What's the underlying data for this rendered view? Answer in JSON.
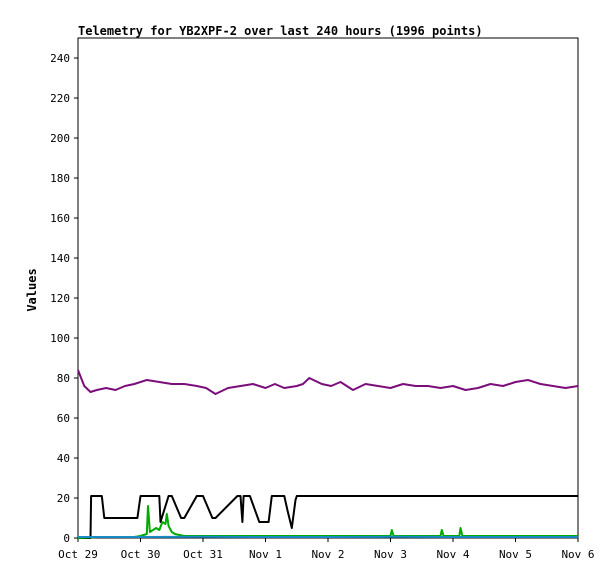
{
  "chart_data": {
    "type": "line",
    "title": "Telemetry for YB2XPF-2 over last 240 hours (1996 points)",
    "xlabel": "",
    "ylabel": "Values",
    "ylim": [
      0,
      250
    ],
    "yticks": [
      0,
      20,
      40,
      60,
      80,
      100,
      120,
      140,
      160,
      180,
      200,
      220,
      240
    ],
    "xlim": [
      0,
      8
    ],
    "xticks": [
      {
        "x": 0,
        "label": "Oct 29"
      },
      {
        "x": 1,
        "label": "Oct 30"
      },
      {
        "x": 2,
        "label": "Oct 31"
      },
      {
        "x": 3,
        "label": "Nov 1"
      },
      {
        "x": 4,
        "label": "Nov 2"
      },
      {
        "x": 5,
        "label": "Nov 3"
      },
      {
        "x": 6,
        "label": "Nov 4"
      },
      {
        "x": 7,
        "label": "Nov 5"
      },
      {
        "x": 8,
        "label": "Nov 6"
      }
    ],
    "grid": false,
    "legend": "none",
    "series": [
      {
        "color": "#7b0e7b",
        "x": [
          0,
          0.05,
          0.1,
          0.2,
          0.3,
          0.45,
          0.6,
          0.75,
          0.9,
          1.1,
          1.3,
          1.5,
          1.7,
          1.9,
          2.05,
          2.2,
          2.4,
          2.6,
          2.8,
          3.0,
          3.15,
          3.3,
          3.5,
          3.6,
          3.7,
          3.9,
          4.05,
          4.2,
          4.4,
          4.6,
          4.8,
          5.0,
          5.2,
          5.4,
          5.6,
          5.8,
          6.0,
          6.2,
          6.4,
          6.6,
          6.8,
          7.0,
          7.2,
          7.4,
          7.6,
          7.8,
          8.0
        ],
        "values": [
          84,
          80,
          76,
          73,
          74,
          75,
          74,
          76,
          77,
          79,
          78,
          77,
          77,
          76,
          75,
          72,
          75,
          76,
          77,
          75,
          77,
          75,
          76,
          77,
          80,
          77,
          76,
          78,
          74,
          77,
          76,
          75,
          77,
          76,
          76,
          75,
          76,
          74,
          75,
          77,
          76,
          78,
          79,
          77,
          76,
          75,
          76
        ]
      },
      {
        "color": "#000000",
        "x": [
          0,
          0.2,
          0.21,
          0.38,
          0.42,
          0.95,
          1.0,
          1.3,
          1.32,
          1.45,
          1.5,
          1.65,
          1.7,
          1.9,
          2.0,
          2.15,
          2.2,
          2.55,
          2.6,
          2.63,
          2.65,
          2.75,
          2.9,
          3.05,
          3.1,
          3.3,
          3.35,
          3.42,
          3.48,
          3.5,
          3.55,
          4.0,
          5.0,
          6.0,
          7.0,
          8.0
        ],
        "values": [
          0,
          0,
          21,
          21,
          10,
          10,
          21,
          21,
          8,
          21,
          21,
          10,
          10,
          21,
          21,
          10,
          10,
          21,
          21,
          8,
          21,
          21,
          8,
          8,
          21,
          21,
          14,
          5,
          19,
          21,
          21,
          21,
          21,
          21,
          21,
          21
        ]
      },
      {
        "color": "#00aa00",
        "x": [
          0,
          0.3,
          0.9,
          1.0,
          1.1,
          1.12,
          1.15,
          1.25,
          1.3,
          1.35,
          1.4,
          1.42,
          1.45,
          1.5,
          1.55,
          1.7,
          2.0,
          3.0,
          5.0,
          5.02,
          5.05,
          5.8,
          5.82,
          5.85,
          6.1,
          6.12,
          6.15,
          7.0,
          8.0
        ],
        "values": [
          0,
          0.5,
          0.5,
          1,
          2,
          16,
          3,
          5,
          4,
          8,
          7,
          12,
          6,
          3,
          2,
          1,
          1,
          1,
          1,
          4,
          1,
          1,
          4,
          1,
          1,
          5,
          1,
          1,
          1
        ]
      },
      {
        "color": "#1a8ac4",
        "x": [
          0,
          1,
          2,
          3,
          4,
          5,
          6,
          7,
          8
        ],
        "values": [
          0.5,
          0.5,
          0.6,
          0.5,
          0.5,
          0.6,
          0.5,
          0.5,
          0.5
        ]
      }
    ]
  }
}
